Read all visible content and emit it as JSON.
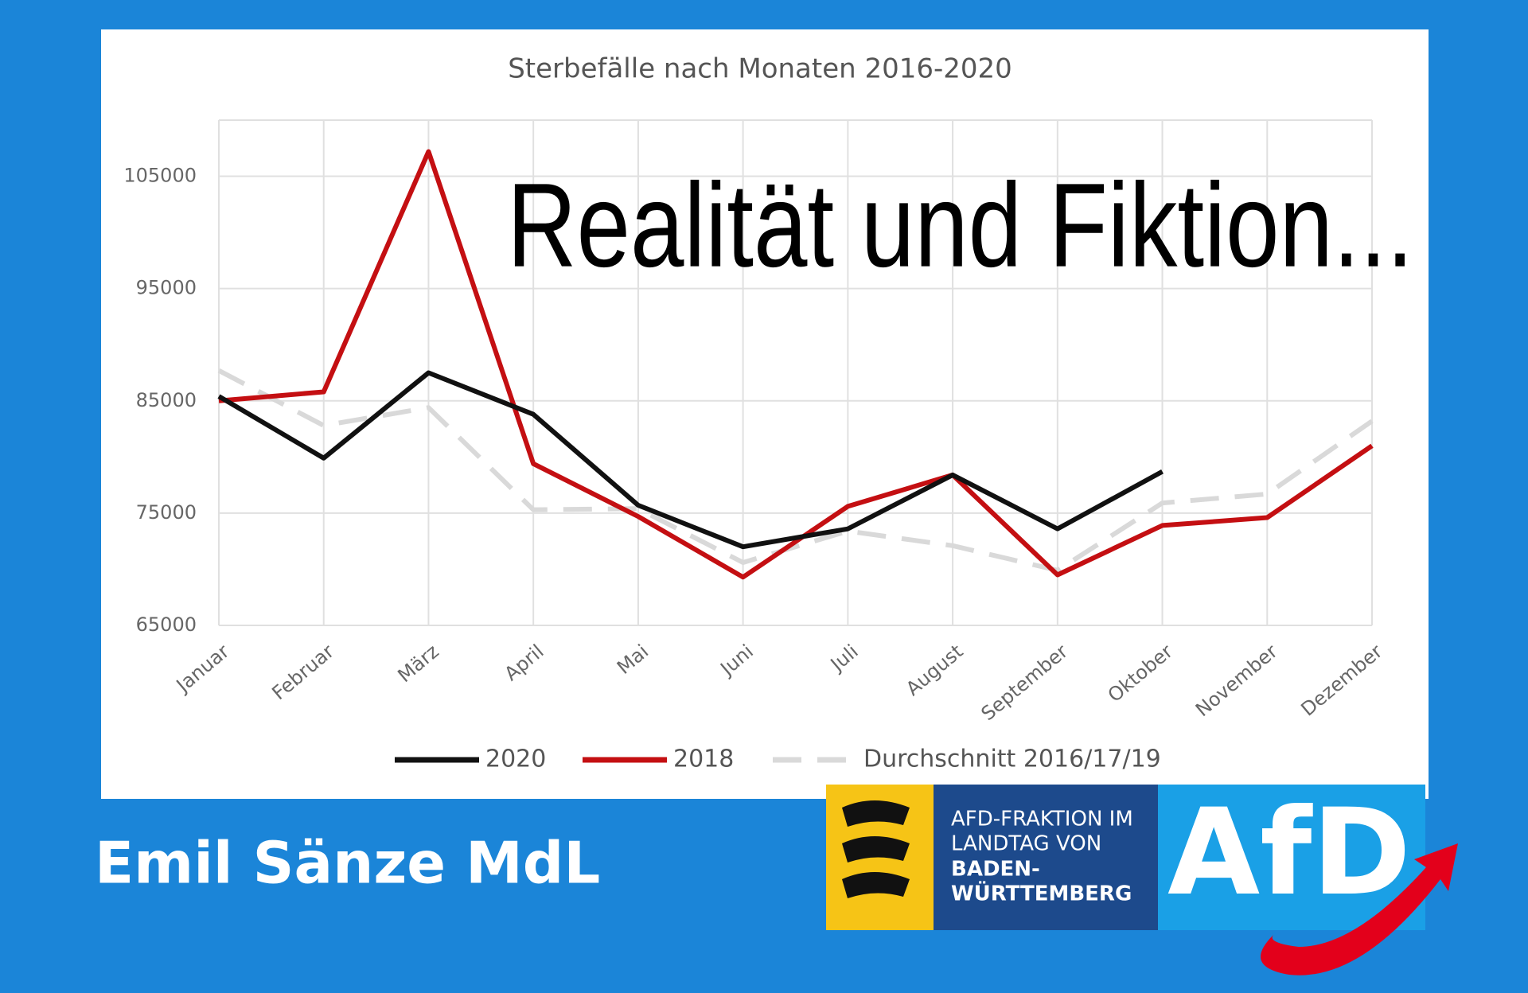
{
  "chart_data": {
    "type": "line",
    "title": "Sterbefälle nach Monaten 2016-2020",
    "annotation": "Realität und Fiktion...",
    "categories": [
      "Januar",
      "Februar",
      "März",
      "April",
      "Mai",
      "Juni",
      "Juli",
      "August",
      "September",
      "Oktober",
      "November",
      "Dezember"
    ],
    "series": [
      {
        "name": "2020",
        "color": "#111111",
        "values": [
          85400,
          79900,
          87500,
          83800,
          75700,
          72000,
          73600,
          78400,
          73600,
          78700,
          null,
          null
        ]
      },
      {
        "name": "2018",
        "color": "#c40f12",
        "values": [
          85000,
          85800,
          107200,
          79400,
          74700,
          69300,
          75600,
          78400,
          69500,
          73900,
          74600,
          81000
        ]
      },
      {
        "name": "Durchschnitt 2016/17/19",
        "color": "#d9d9d9",
        "dashed": true,
        "values": [
          87700,
          82800,
          84400,
          75300,
          75400,
          70600,
          73400,
          72100,
          69900,
          75900,
          76700,
          83200
        ]
      }
    ],
    "ylim": [
      65000,
      110000
    ],
    "yticks": [
      65000,
      75000,
      85000,
      95000,
      105000
    ],
    "grid": true,
    "legend": "bottom"
  },
  "footer": {
    "name": "Emil Sänze MdL"
  },
  "logo": {
    "lines": [
      "AFD-FRAKTION IM",
      "LANDTAG VON",
      "BADEN-",
      "WÜRTTEMBERG"
    ],
    "brand": "AfD"
  }
}
